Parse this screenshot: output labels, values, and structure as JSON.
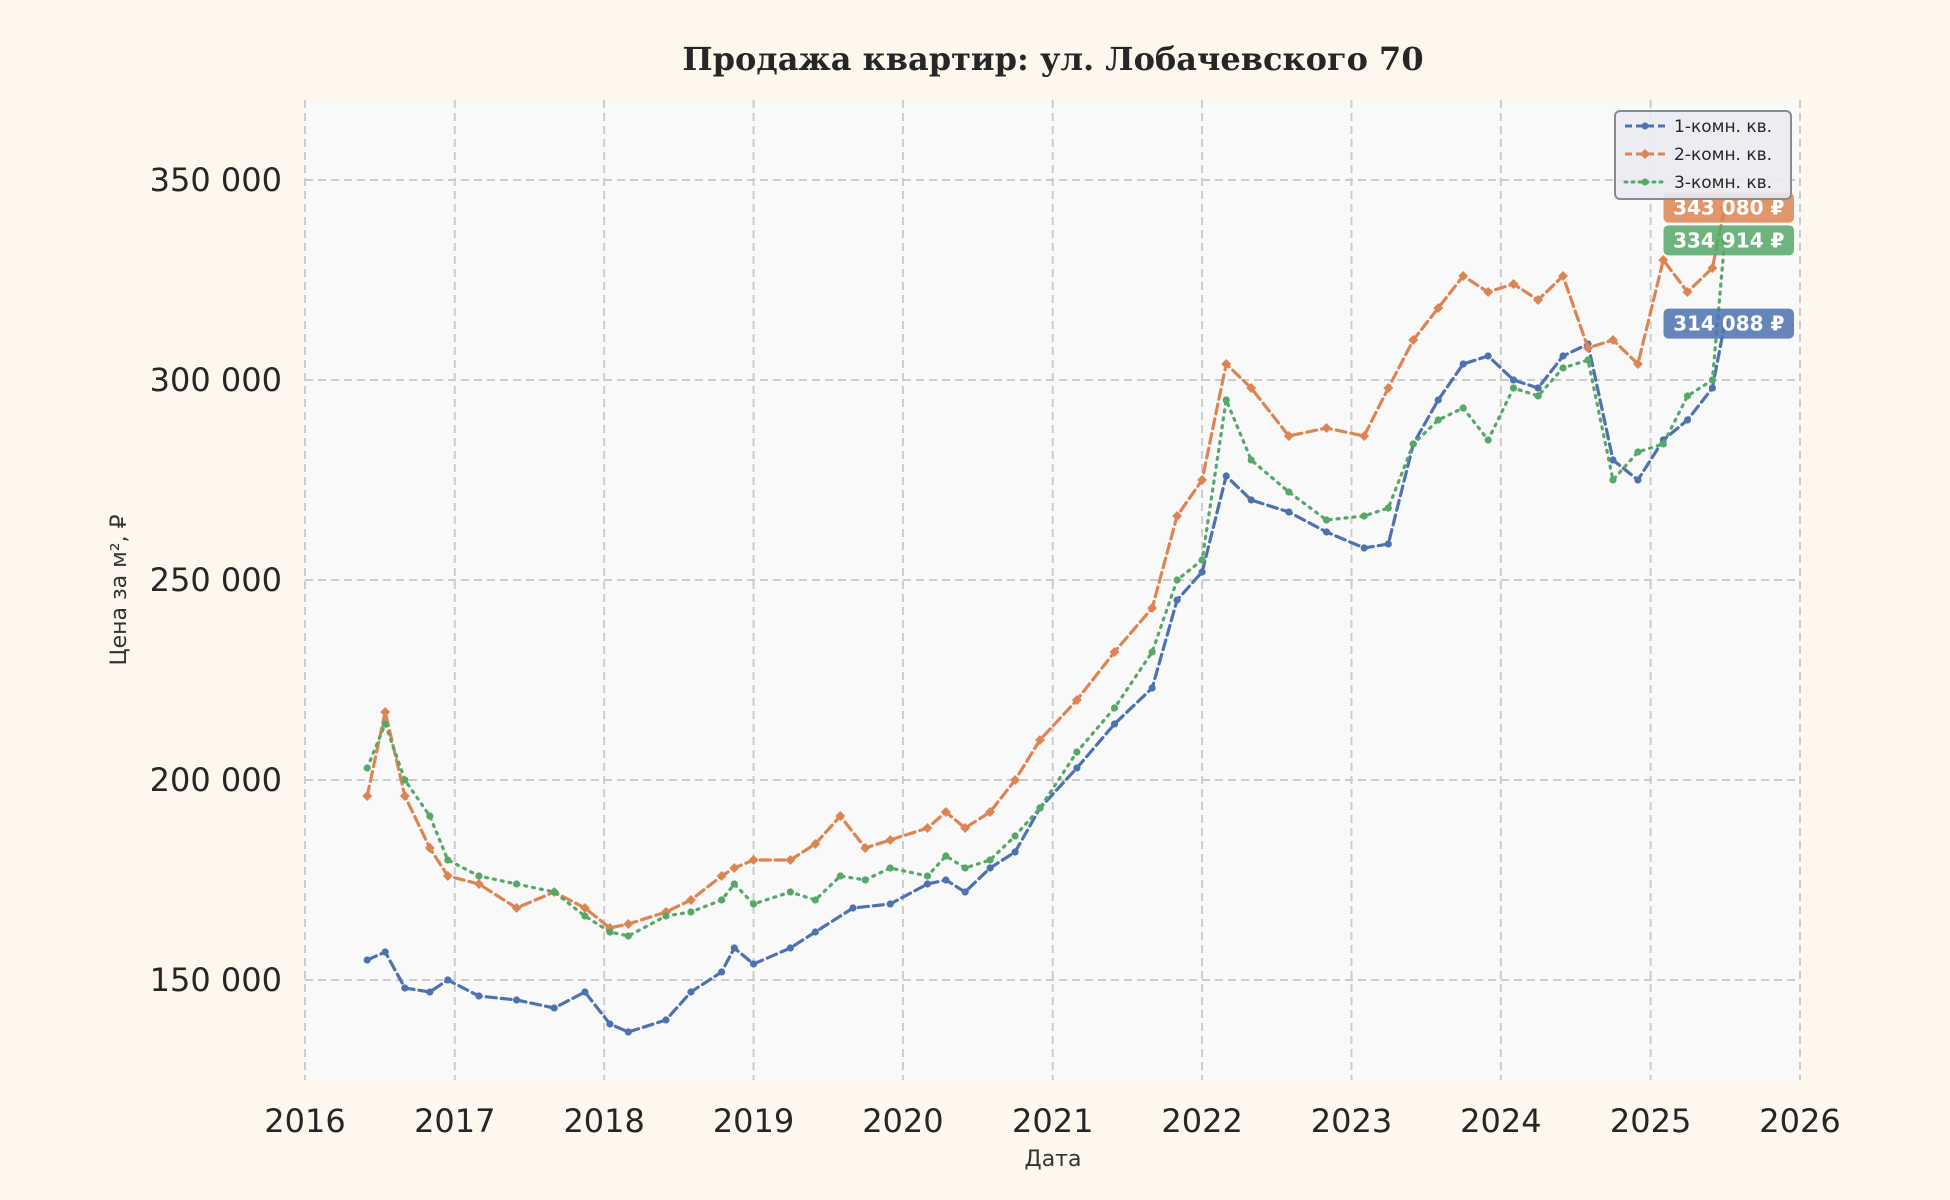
{
  "chart_data": {
    "type": "line",
    "title": "Продажа квартир: ул. Лобачевского 70",
    "xlabel": "Дата",
    "ylabel": "Цена за м², ₽",
    "x_type": "date",
    "xlim": [
      "2016-01-01",
      "2026-01-01"
    ],
    "ylim": [
      125000,
      370000
    ],
    "xticks": [
      "2016",
      "2017",
      "2018",
      "2019",
      "2020",
      "2021",
      "2022",
      "2023",
      "2024",
      "2025",
      "2026"
    ],
    "yticks": [
      150000,
      200000,
      250000,
      300000,
      350000
    ],
    "ytick_labels": [
      "150 000",
      "200 000",
      "250 000",
      "300 000",
      "350 000"
    ],
    "grid": true,
    "legend_position": "top-right",
    "series": [
      {
        "name": "1-комн. кв.",
        "color": "#4c72b0",
        "line_style": "dashed",
        "marker": "circle",
        "end_label": "314 088 ₽",
        "x": [
          "2016-06-01",
          "2016-07-15",
          "2016-09-01",
          "2016-11-01",
          "2016-12-15",
          "2017-03-01",
          "2017-06-01",
          "2017-09-01",
          "2017-11-15",
          "2018-01-15",
          "2018-03-01",
          "2018-06-01",
          "2018-08-01",
          "2018-10-15",
          "2018-11-15",
          "2019-01-01",
          "2019-04-01",
          "2019-06-01",
          "2019-09-01",
          "2019-12-01",
          "2020-03-01",
          "2020-04-15",
          "2020-06-01",
          "2020-08-01",
          "2020-10-01",
          "2020-12-01",
          "2021-03-01",
          "2021-06-01",
          "2021-09-01",
          "2021-11-01",
          "2022-01-01",
          "2022-03-01",
          "2022-05-01",
          "2022-08-01",
          "2022-11-01",
          "2023-02-01",
          "2023-04-01",
          "2023-06-01",
          "2023-08-01",
          "2023-10-01",
          "2023-12-01",
          "2024-02-01",
          "2024-04-01",
          "2024-06-01",
          "2024-08-01",
          "2024-10-01",
          "2024-12-01",
          "2025-02-01",
          "2025-04-01",
          "2025-06-01",
          "2025-07-01"
        ],
        "y": [
          155000,
          157000,
          148000,
          147000,
          150000,
          146000,
          145000,
          143000,
          147000,
          139000,
          137000,
          140000,
          147000,
          152000,
          158000,
          154000,
          158000,
          162000,
          168000,
          169000,
          174000,
          175000,
          172000,
          178000,
          182000,
          193000,
          203000,
          214000,
          223000,
          245000,
          252000,
          276000,
          270000,
          267000,
          262000,
          258000,
          259000,
          284000,
          295000,
          304000,
          306000,
          300000,
          298000,
          306000,
          309000,
          280000,
          275000,
          285000,
          290000,
          298000,
          314088
        ]
      },
      {
        "name": "2-комн. кв.",
        "color": "#dd8452",
        "line_style": "dashed",
        "marker": "diamond",
        "end_label": "343 080 ₽",
        "x": [
          "2016-06-01",
          "2016-07-15",
          "2016-09-01",
          "2016-11-01",
          "2016-12-15",
          "2017-03-01",
          "2017-06-01",
          "2017-09-01",
          "2017-11-15",
          "2018-01-15",
          "2018-03-01",
          "2018-06-01",
          "2018-08-01",
          "2018-10-15",
          "2018-11-15",
          "2019-01-01",
          "2019-04-01",
          "2019-06-01",
          "2019-08-01",
          "2019-10-01",
          "2019-12-01",
          "2020-03-01",
          "2020-04-15",
          "2020-06-01",
          "2020-08-01",
          "2020-10-01",
          "2020-12-01",
          "2021-03-01",
          "2021-06-01",
          "2021-09-01",
          "2021-11-01",
          "2022-01-01",
          "2022-03-01",
          "2022-05-01",
          "2022-08-01",
          "2022-11-01",
          "2023-02-01",
          "2023-04-01",
          "2023-06-01",
          "2023-08-01",
          "2023-10-01",
          "2023-12-01",
          "2024-02-01",
          "2024-04-01",
          "2024-06-01",
          "2024-08-01",
          "2024-10-01",
          "2024-12-01",
          "2025-02-01",
          "2025-04-01",
          "2025-06-01",
          "2025-07-01"
        ],
        "y": [
          196000,
          217000,
          196000,
          183000,
          176000,
          174000,
          168000,
          172000,
          168000,
          163000,
          164000,
          167000,
          170000,
          176000,
          178000,
          180000,
          180000,
          184000,
          191000,
          183000,
          185000,
          188000,
          192000,
          188000,
          192000,
          200000,
          210000,
          220000,
          232000,
          243000,
          266000,
          275000,
          304000,
          298000,
          286000,
          288000,
          286000,
          298000,
          310000,
          318000,
          326000,
          322000,
          324000,
          320000,
          326000,
          308000,
          310000,
          304000,
          330000,
          322000,
          328000,
          343080
        ]
      },
      {
        "name": "3-комн. кв.",
        "color": "#55a868",
        "line_style": "dotted",
        "marker": "circle",
        "end_label": "334 914 ₽",
        "x": [
          "2016-06-01",
          "2016-07-15",
          "2016-09-01",
          "2016-11-01",
          "2016-12-15",
          "2017-03-01",
          "2017-06-01",
          "2017-09-01",
          "2017-11-15",
          "2018-01-15",
          "2018-03-01",
          "2018-06-01",
          "2018-08-01",
          "2018-10-15",
          "2018-11-15",
          "2019-01-01",
          "2019-04-01",
          "2019-06-01",
          "2019-08-01",
          "2019-10-01",
          "2019-12-01",
          "2020-03-01",
          "2020-04-15",
          "2020-06-01",
          "2020-08-01",
          "2020-10-01",
          "2020-12-01",
          "2021-03-01",
          "2021-06-01",
          "2021-09-01",
          "2021-11-01",
          "2022-01-01",
          "2022-03-01",
          "2022-05-01",
          "2022-08-01",
          "2022-11-01",
          "2023-02-01",
          "2023-04-01",
          "2023-06-01",
          "2023-08-01",
          "2023-10-01",
          "2023-12-01",
          "2024-02-01",
          "2024-04-01",
          "2024-06-01",
          "2024-08-01",
          "2024-10-01",
          "2024-12-01",
          "2025-02-01",
          "2025-04-01",
          "2025-06-01",
          "2025-07-01"
        ],
        "y": [
          203000,
          214000,
          200000,
          191000,
          180000,
          176000,
          174000,
          172000,
          166000,
          162000,
          161000,
          166000,
          167000,
          170000,
          174000,
          169000,
          172000,
          170000,
          176000,
          175000,
          178000,
          176000,
          181000,
          178000,
          180000,
          186000,
          193000,
          207000,
          218000,
          232000,
          250000,
          255000,
          295000,
          280000,
          272000,
          265000,
          266000,
          268000,
          284000,
          290000,
          293000,
          285000,
          298000,
          296000,
          303000,
          305000,
          275000,
          282000,
          284000,
          296000,
          300000,
          334914
        ]
      }
    ]
  }
}
